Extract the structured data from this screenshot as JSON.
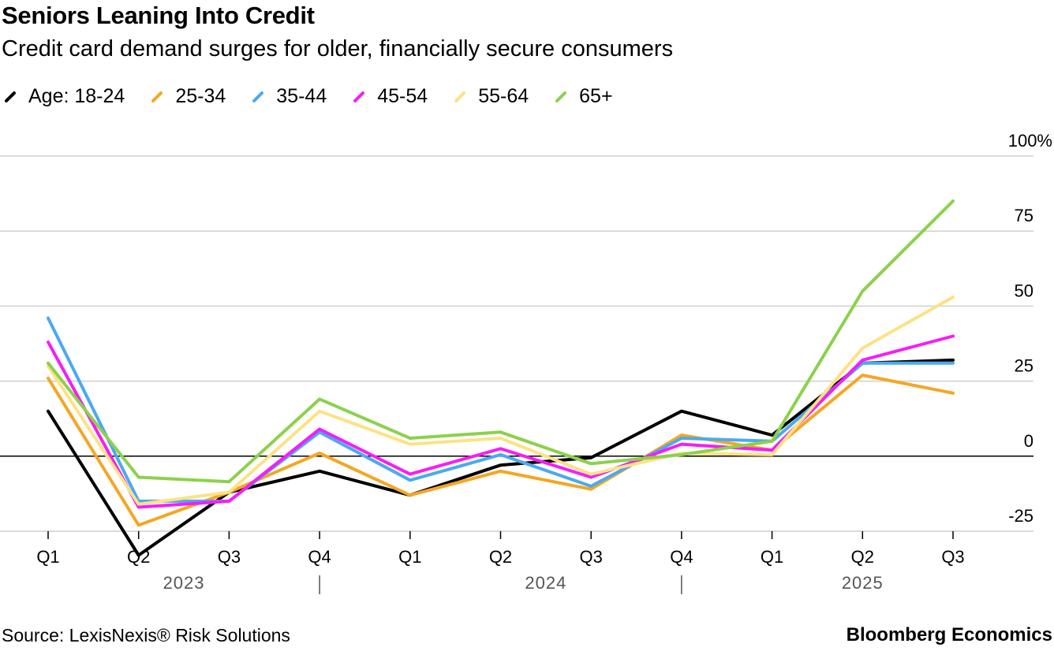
{
  "header": {
    "title": "Seniors Leaning Into Credit",
    "subtitle": "Credit card demand surges for older, financially secure consumers"
  },
  "footer": {
    "source": "Source: LexisNexis® Risk Solutions",
    "brand": "Bloomberg Economics"
  },
  "chart_data": {
    "type": "line",
    "title": "Seniors Leaning Into Credit",
    "subtitle": "Credit card demand surges for older, financially secure consumers",
    "xlabel": "",
    "ylabel": "",
    "ylim": [
      -25,
      100
    ],
    "yticks": [
      100,
      75,
      50,
      25,
      0,
      -25
    ],
    "ytick_labels": [
      "100%",
      "75",
      "50",
      "25",
      "0",
      "-25"
    ],
    "grid": true,
    "legend_position": "top-left",
    "categories": [
      "Q1",
      "Q2",
      "Q3",
      "Q4",
      "Q1",
      "Q2",
      "Q3",
      "Q4",
      "Q1",
      "Q2",
      "Q3"
    ],
    "years": [
      {
        "label": "2023",
        "start": 0,
        "end": 3
      },
      {
        "label": "2024",
        "start": 4,
        "end": 7
      },
      {
        "label": "2025",
        "start": 8,
        "end": 10
      }
    ],
    "series": [
      {
        "name": "Age: 18-24",
        "color": "#000000",
        "values": [
          15,
          -33,
          -12,
          -5,
          -13,
          -3,
          -0.5,
          15,
          7,
          31,
          32
        ]
      },
      {
        "name": "25-34",
        "color": "#f5a623",
        "values": [
          26,
          -23,
          -12,
          1,
          -13,
          -5,
          -11,
          7,
          2,
          27,
          21
        ]
      },
      {
        "name": "35-44",
        "color": "#4aaaf0",
        "values": [
          46,
          -15,
          -15,
          8,
          -8,
          0.5,
          -10,
          6,
          5,
          31,
          31
        ]
      },
      {
        "name": "45-54",
        "color": "#f51ef5",
        "values": [
          38,
          -17,
          -15,
          9,
          -6,
          2.5,
          -7,
          4,
          2,
          32,
          40
        ]
      },
      {
        "name": "55-64",
        "color": "#fce285",
        "values": [
          30,
          -16,
          -12,
          15,
          4,
          6,
          -6,
          1,
          0.5,
          36,
          53
        ]
      },
      {
        "name": "65+",
        "color": "#8cd14b",
        "values": [
          31,
          -7,
          -8.5,
          19,
          6,
          8,
          -2.5,
          0.5,
          5,
          55,
          85
        ]
      }
    ]
  }
}
